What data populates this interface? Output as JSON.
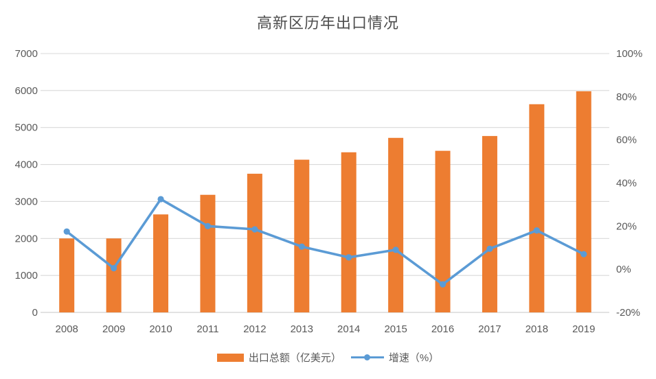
{
  "colors": {
    "bar": "#ED7D31",
    "line": "#5B9BD5",
    "grid": "#D9D9D9",
    "axis_text": "#595959",
    "title_text": "#4d4d4d",
    "background": "#FFFFFF"
  },
  "chart_data": {
    "type": "bar+line combo",
    "title": "高新区历年出口情况",
    "categories": [
      "2008",
      "2009",
      "2010",
      "2011",
      "2012",
      "2013",
      "2014",
      "2015",
      "2016",
      "2017",
      "2018",
      "2019"
    ],
    "series": [
      {
        "name": "出口总额（亿美元）",
        "type": "bar",
        "axis": "left",
        "color": "#ED7D31",
        "values": [
          2000,
          2000,
          2650,
          3180,
          3750,
          4130,
          4330,
          4720,
          4370,
          4770,
          5630,
          5980
        ]
      },
      {
        "name": "增速（%）",
        "type": "line",
        "axis": "right",
        "color": "#5B9BD5",
        "values": [
          17.5,
          0.5,
          32.5,
          20,
          18.5,
          10.5,
          5.5,
          9,
          -7,
          9.5,
          18,
          7
        ]
      }
    ],
    "left_axis": {
      "min": 0,
      "max": 7000,
      "step": 1000,
      "tick_labels": [
        "0",
        "1000",
        "2000",
        "3000",
        "4000",
        "5000",
        "6000",
        "7000"
      ]
    },
    "right_axis": {
      "min": -20,
      "max": 100,
      "step": 20,
      "tick_labels": [
        "-20%",
        "0%",
        "20%",
        "40%",
        "60%",
        "80%",
        "100%"
      ]
    },
    "grid": true,
    "legend_position": "bottom"
  },
  "legend": {
    "items": [
      {
        "label": "出口总额（亿美元）",
        "swatch": "bar"
      },
      {
        "label": "增速（%）",
        "swatch": "line"
      }
    ]
  }
}
